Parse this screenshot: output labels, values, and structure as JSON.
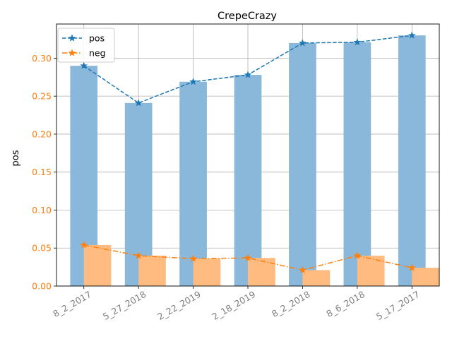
{
  "chart_data": {
    "type": "bar",
    "title": "CrepeCrazy",
    "xlabel": "",
    "ylabel": "pos",
    "categories": [
      "8_2_2017",
      "5_27_2018",
      "2_22_2019",
      "2_18_2019",
      "8_2_2018",
      "8_6_2018",
      "5_17_2017"
    ],
    "ylim": [
      0,
      0.345
    ],
    "yticks": [
      "0.00",
      "0.05",
      "0.10",
      "0.15",
      "0.20",
      "0.25",
      "0.30"
    ],
    "grid": true,
    "legend_position": "top-left",
    "series": [
      {
        "name": "pos",
        "values": [
          0.29,
          0.241,
          0.269,
          0.278,
          0.32,
          0.321,
          0.33
        ],
        "bar_color": "#8ab8db",
        "line_color": "#1f77b4",
        "line_style": "dashed",
        "marker": "star"
      },
      {
        "name": "neg",
        "values": [
          0.054,
          0.04,
          0.036,
          0.037,
          0.021,
          0.04,
          0.024
        ],
        "bar_color": "#ffbb80",
        "line_color": "#ff7f0e",
        "line_style": "dashdot",
        "marker": "star"
      }
    ],
    "colors": {
      "ytick_label": "#ff7f0e",
      "xtick_label": "#808080",
      "grid": "#b0b0b0",
      "axis": "#000000"
    }
  }
}
